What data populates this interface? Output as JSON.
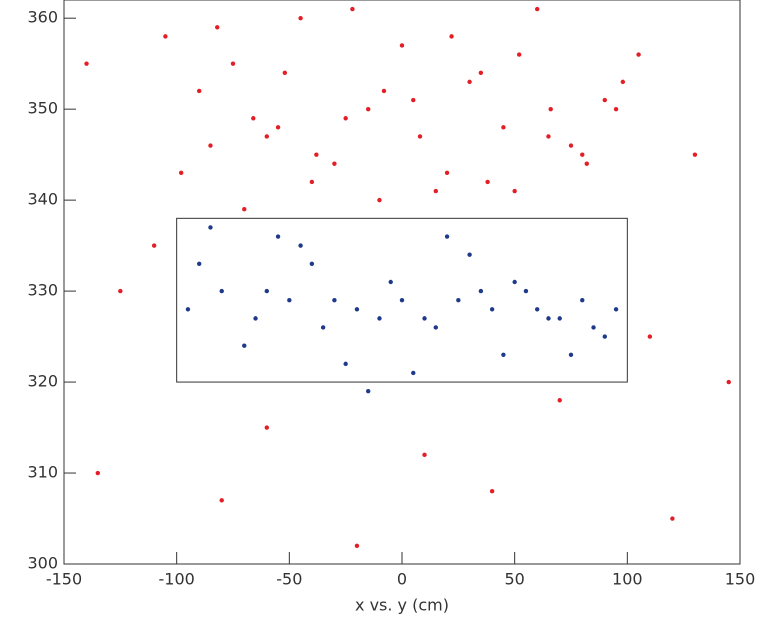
{
  "chart_data": {
    "type": "scatter",
    "xlabel": "x vs. y (cm)",
    "xlim": [
      -150,
      150
    ],
    "ylim": [
      300,
      362
    ],
    "xticks": [
      -150,
      -100,
      -50,
      0,
      50,
      100,
      150
    ],
    "yticks": [
      300,
      310,
      320,
      330,
      340,
      350,
      360
    ],
    "series": [
      {
        "color": "#e41e26",
        "x": [
          -105,
          -90,
          -75,
          -60,
          -45,
          -30,
          -15,
          0,
          15,
          30,
          45,
          60,
          75,
          90,
          105,
          -98,
          -82,
          -66,
          -52,
          -38,
          -22,
          -8,
          8,
          22,
          38,
          52,
          66,
          82,
          98,
          -70,
          -40,
          -10,
          20,
          50,
          80,
          -85,
          -55,
          -25,
          5,
          35,
          65,
          95,
          -140,
          -125,
          130,
          145,
          -135,
          120,
          -60,
          40,
          -20,
          10,
          110,
          -110,
          70,
          -80
        ],
        "values": [
          358,
          352,
          355,
          347,
          360,
          344,
          350,
          357,
          341,
          353,
          348,
          361,
          346,
          351,
          356,
          343,
          359,
          349,
          354,
          345,
          361,
          352,
          347,
          358,
          342,
          356,
          350,
          344,
          353,
          339,
          342,
          340,
          343,
          341,
          345,
          346,
          348,
          349,
          351,
          354,
          347,
          350,
          355,
          330,
          345,
          320,
          310,
          305,
          315,
          308,
          302,
          312,
          325,
          335,
          318,
          307
        ]
      },
      {
        "color": "#1f3a8a",
        "x": [
          -95,
          -80,
          -65,
          -50,
          -35,
          -20,
          -5,
          10,
          25,
          40,
          55,
          70,
          85,
          -90,
          -70,
          -45,
          -25,
          0,
          20,
          45,
          65,
          90,
          -60,
          -30,
          -10,
          15,
          35,
          60,
          80,
          -85,
          -40,
          5,
          30,
          75,
          -15,
          50,
          -55,
          95
        ],
        "values": [
          328,
          330,
          327,
          329,
          326,
          328,
          331,
          327,
          329,
          328,
          330,
          327,
          326,
          333,
          324,
          335,
          322,
          329,
          336,
          323,
          327,
          325,
          330,
          329,
          327,
          326,
          330,
          328,
          329,
          337,
          333,
          321,
          334,
          323,
          319,
          331,
          336,
          328
        ]
      }
    ],
    "box": {
      "xlim": [
        -100,
        100
      ],
      "ylim": [
        320,
        338
      ]
    }
  }
}
